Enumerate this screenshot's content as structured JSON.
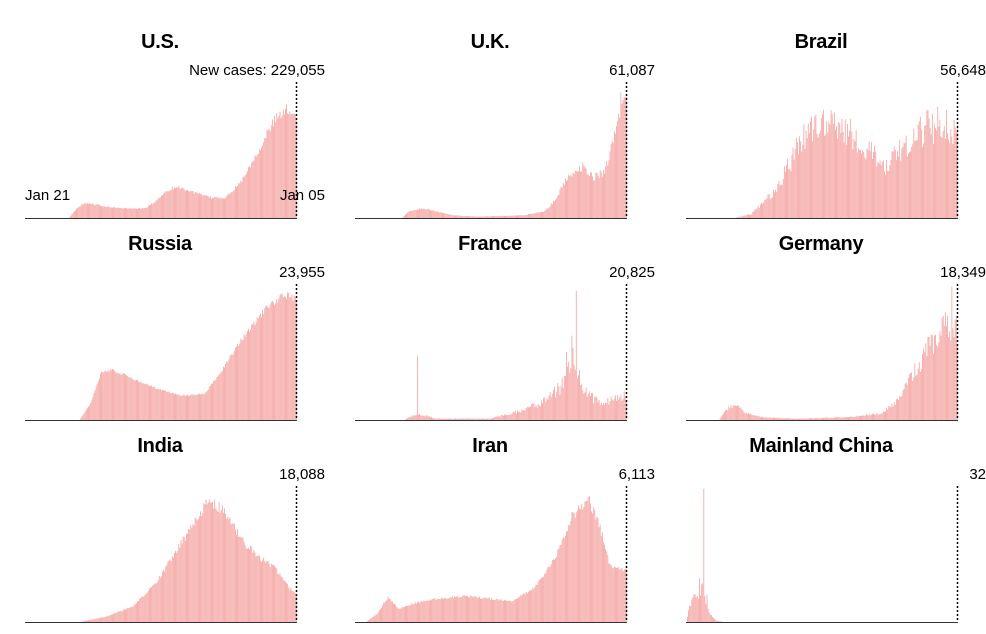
{
  "chart_data": [
    {
      "type": "bar",
      "title": "U.S.",
      "latest_label": "New cases: 229,055",
      "latest_value": 229055,
      "x_start": "Jan 21",
      "x_end": "Jan 05",
      "shape": [
        [
          0,
          0
        ],
        [
          0.16,
          0
        ],
        [
          0.19,
          0.07
        ],
        [
          0.22,
          0.11
        ],
        [
          0.28,
          0.09
        ],
        [
          0.36,
          0.07
        ],
        [
          0.44,
          0.07
        ],
        [
          0.48,
          0.12
        ],
        [
          0.52,
          0.2
        ],
        [
          0.56,
          0.23
        ],
        [
          0.62,
          0.19
        ],
        [
          0.68,
          0.15
        ],
        [
          0.74,
          0.15
        ],
        [
          0.8,
          0.28
        ],
        [
          0.86,
          0.5
        ],
        [
          0.92,
          0.72
        ],
        [
          0.97,
          0.8
        ],
        [
          1.0,
          0.76
        ]
      ],
      "noise": 0.12,
      "color": "#f4a3a0"
    },
    {
      "type": "bar",
      "title": "U.K.",
      "latest_label": "61,087",
      "latest_value": 61087,
      "shape": [
        [
          0,
          0
        ],
        [
          0.17,
          0
        ],
        [
          0.2,
          0.05
        ],
        [
          0.25,
          0.07
        ],
        [
          0.3,
          0.05
        ],
        [
          0.36,
          0.02
        ],
        [
          0.45,
          0.01
        ],
        [
          0.62,
          0.02
        ],
        [
          0.7,
          0.05
        ],
        [
          0.74,
          0.14
        ],
        [
          0.78,
          0.3
        ],
        [
          0.84,
          0.38
        ],
        [
          0.88,
          0.3
        ],
        [
          0.92,
          0.34
        ],
        [
          0.95,
          0.55
        ],
        [
          0.98,
          0.85
        ],
        [
          1.0,
          0.92
        ]
      ],
      "noise": 0.18,
      "color": "#f4a3a0"
    },
    {
      "type": "bar",
      "title": "Brazil",
      "latest_label": "56,648",
      "latest_value": 56648,
      "shape": [
        [
          0,
          0
        ],
        [
          0.18,
          0
        ],
        [
          0.24,
          0.03
        ],
        [
          0.32,
          0.18
        ],
        [
          0.38,
          0.4
        ],
        [
          0.44,
          0.62
        ],
        [
          0.52,
          0.7
        ],
        [
          0.6,
          0.64
        ],
        [
          0.68,
          0.48
        ],
        [
          0.74,
          0.38
        ],
        [
          0.8,
          0.52
        ],
        [
          0.88,
          0.66
        ],
        [
          0.95,
          0.7
        ],
        [
          1.0,
          0.64
        ]
      ],
      "noise": 0.4,
      "color": "#f4a3a0"
    },
    {
      "type": "bar",
      "title": "Russia",
      "latest_label": "23,955",
      "latest_value": 23955,
      "shape": [
        [
          0,
          0
        ],
        [
          0.2,
          0
        ],
        [
          0.24,
          0.12
        ],
        [
          0.28,
          0.35
        ],
        [
          0.32,
          0.37
        ],
        [
          0.4,
          0.3
        ],
        [
          0.5,
          0.22
        ],
        [
          0.58,
          0.18
        ],
        [
          0.66,
          0.19
        ],
        [
          0.72,
          0.35
        ],
        [
          0.8,
          0.6
        ],
        [
          0.88,
          0.8
        ],
        [
          0.95,
          0.92
        ],
        [
          1.0,
          0.9
        ]
      ],
      "noise": 0.06,
      "color": "#f4a3a0"
    },
    {
      "type": "bar",
      "title": "France",
      "latest_label": "20,825",
      "latest_value": 20825,
      "shape": [
        [
          0,
          0
        ],
        [
          0.18,
          0
        ],
        [
          0.22,
          0.04
        ],
        [
          0.26,
          0.03
        ],
        [
          0.3,
          0.01
        ],
        [
          0.5,
          0.01
        ],
        [
          0.6,
          0.06
        ],
        [
          0.7,
          0.14
        ],
        [
          0.76,
          0.25
        ],
        [
          0.8,
          0.45
        ],
        [
          0.84,
          0.25
        ],
        [
          0.88,
          0.15
        ],
        [
          0.92,
          0.13
        ],
        [
          0.96,
          0.15
        ],
        [
          1.0,
          0.18
        ]
      ],
      "noise": 0.45,
      "spikes": [
        [
          0.23,
          0.47
        ],
        [
          0.816,
          0.95
        ],
        [
          0.8,
          0.62
        ],
        [
          0.78,
          0.5
        ]
      ],
      "color": "#f4a3a0"
    },
    {
      "type": "bar",
      "title": "Germany",
      "latest_label": "18,349",
      "latest_value": 18349,
      "shape": [
        [
          0,
          0
        ],
        [
          0.12,
          0
        ],
        [
          0.15,
          0.08
        ],
        [
          0.18,
          0.12
        ],
        [
          0.22,
          0.05
        ],
        [
          0.28,
          0.02
        ],
        [
          0.4,
          0.01
        ],
        [
          0.6,
          0.02
        ],
        [
          0.72,
          0.05
        ],
        [
          0.78,
          0.14
        ],
        [
          0.84,
          0.35
        ],
        [
          0.9,
          0.55
        ],
        [
          0.95,
          0.7
        ],
        [
          1.0,
          0.66
        ]
      ],
      "noise": 0.35,
      "spikes": [
        [
          0.98,
          0.98
        ]
      ],
      "color": "#f4a3a0"
    },
    {
      "type": "bar",
      "title": "India",
      "latest_label": "18,088",
      "latest_value": 18088,
      "shape": [
        [
          0,
          0
        ],
        [
          0.2,
          0
        ],
        [
          0.3,
          0.04
        ],
        [
          0.4,
          0.12
        ],
        [
          0.48,
          0.28
        ],
        [
          0.55,
          0.5
        ],
        [
          0.62,
          0.72
        ],
        [
          0.68,
          0.9
        ],
        [
          0.74,
          0.8
        ],
        [
          0.8,
          0.6
        ],
        [
          0.86,
          0.48
        ],
        [
          0.92,
          0.4
        ],
        [
          0.97,
          0.26
        ],
        [
          1.0,
          0.2
        ]
      ],
      "noise": 0.1,
      "color": "#f4a3a0"
    },
    {
      "type": "bar",
      "title": "Iran",
      "latest_label": "6,113",
      "latest_value": 6113,
      "shape": [
        [
          0,
          0
        ],
        [
          0.04,
          0
        ],
        [
          0.08,
          0.06
        ],
        [
          0.12,
          0.18
        ],
        [
          0.16,
          0.1
        ],
        [
          0.22,
          0.14
        ],
        [
          0.3,
          0.17
        ],
        [
          0.4,
          0.19
        ],
        [
          0.5,
          0.17
        ],
        [
          0.58,
          0.15
        ],
        [
          0.66,
          0.25
        ],
        [
          0.74,
          0.48
        ],
        [
          0.8,
          0.78
        ],
        [
          0.86,
          0.9
        ],
        [
          0.9,
          0.72
        ],
        [
          0.94,
          0.42
        ],
        [
          1.0,
          0.38
        ]
      ],
      "noise": 0.1,
      "color": "#f4a3a0"
    },
    {
      "type": "bar",
      "title": "Mainland China",
      "latest_label": "32",
      "latest_value": 32,
      "shape": [
        [
          0,
          0
        ],
        [
          0.01,
          0.1
        ],
        [
          0.03,
          0.22
        ],
        [
          0.05,
          0.18
        ],
        [
          0.06,
          0.3
        ],
        [
          0.07,
          0.15
        ],
        [
          0.09,
          0.05
        ],
        [
          0.11,
          0.01
        ],
        [
          0.14,
          0
        ],
        [
          1.0,
          0
        ]
      ],
      "noise": 0.3,
      "spikes": [
        [
          0.065,
          0.98
        ],
        [
          0.05,
          0.32
        ],
        [
          0.075,
          0.2
        ]
      ],
      "color": "#f4a3a0"
    }
  ]
}
